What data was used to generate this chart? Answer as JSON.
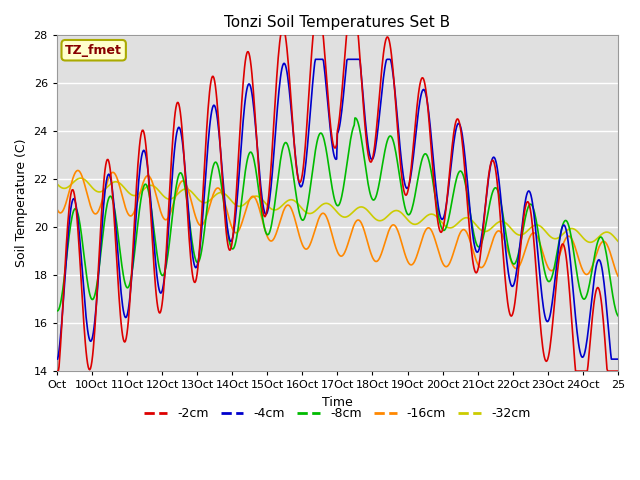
{
  "title": "Tonzi Soil Temperatures Set B",
  "xlabel": "Time",
  "ylabel": "Soil Temperature (C)",
  "ylim": [
    14,
    28
  ],
  "yticks": [
    14,
    16,
    18,
    20,
    22,
    24,
    26,
    28
  ],
  "annotation_text": "TZ_fmet",
  "annotation_bg": "#ffffcc",
  "annotation_border": "#aaaa00",
  "annotation_text_color": "#880000",
  "legend_labels": [
    "-2cm",
    "-4cm",
    "-8cm",
    "-16cm",
    "-32cm"
  ],
  "legend_colors": [
    "#dd0000",
    "#0000cc",
    "#00bb00",
    "#ff8800",
    "#cccc00"
  ],
  "line_width": 1.2,
  "background_color": "#e0e0e0",
  "tick_labels": [
    "Oct",
    "10Oct",
    "11Oct",
    "12Oct",
    "13Oct",
    "14Oct",
    "15Oct",
    "16Oct",
    "17Oct",
    "18Oct",
    "19Oct",
    "20Oct",
    "21Oct",
    "22Oct",
    "23Oct",
    "24Oct",
    "25"
  ]
}
